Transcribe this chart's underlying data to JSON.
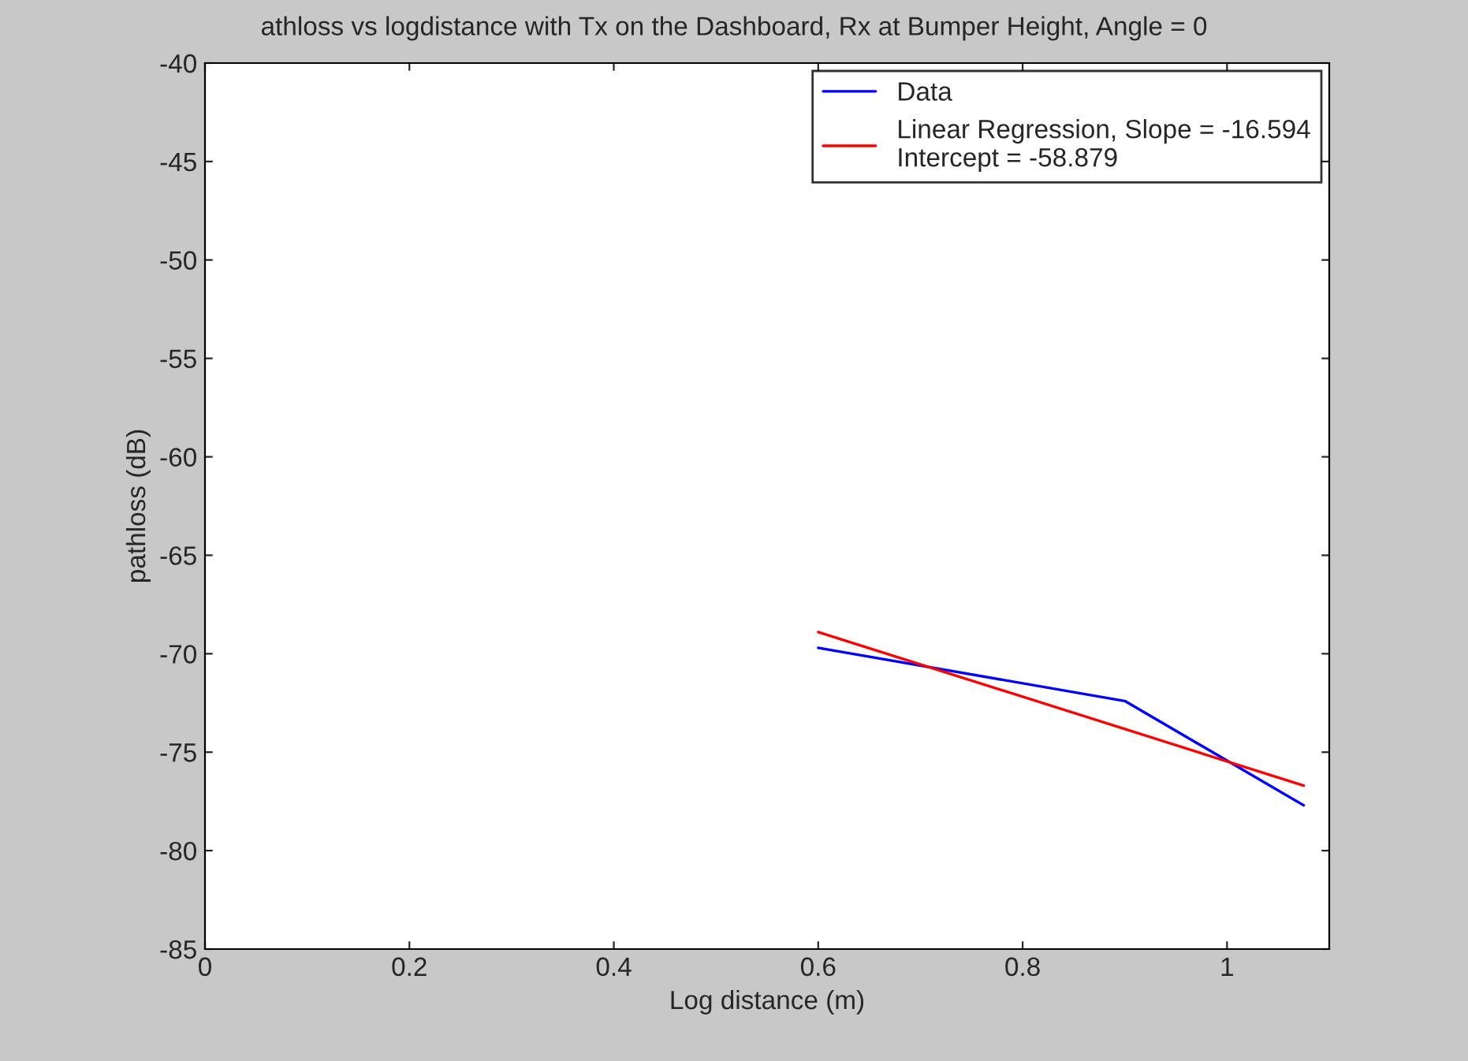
{
  "chart_data": {
    "type": "line",
    "title": "athloss vs logdistance with Tx on the Dashboard, Rx at Bumper Height, Angle = 0",
    "xlabel": "Log distance (m)",
    "ylabel": "pathloss (dB)",
    "series": [
      {
        "name": "Data",
        "color": "#0000ff",
        "x": [
          0.6,
          0.9,
          1.075
        ],
        "values": [
          -69.7,
          -72.4,
          -77.7
        ]
      },
      {
        "name": "Linear Regression, Slope = -16.594\nIntercept = -58.879",
        "color": "#ff0000",
        "x": [
          0.6,
          1.075
        ],
        "values": [
          -68.9,
          -76.7
        ]
      }
    ],
    "xlim": [
      0,
      1.1
    ],
    "xticks": [
      0,
      0.2,
      0.4,
      0.6,
      0.8,
      1
    ],
    "ylim": [
      -85,
      -40
    ],
    "yticks": [
      -85,
      -80,
      -75,
      -70,
      -65,
      -60,
      -55,
      -50,
      -45,
      -40
    ],
    "grid": false,
    "legend": "top right",
    "line_style": "solid",
    "marker": "none"
  }
}
